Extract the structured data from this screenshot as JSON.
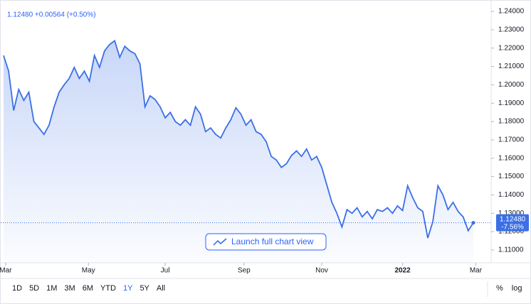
{
  "chart_data": {
    "type": "area",
    "legend_text": "1.12480 +0.00564 (+0.50%)",
    "color": "#3b6fe6",
    "values": [
      1.216,
      1.2075,
      1.186,
      1.1975,
      1.1915,
      1.196,
      1.18,
      1.1765,
      1.173,
      1.178,
      1.188,
      1.196,
      1.2,
      1.2035,
      1.2095,
      1.2035,
      1.2075,
      1.202,
      1.216,
      1.2095,
      1.2185,
      1.222,
      1.224,
      1.215,
      1.221,
      1.2185,
      1.217,
      1.2115,
      1.188,
      1.194,
      1.192,
      1.188,
      1.182,
      1.185,
      1.18,
      1.178,
      1.181,
      1.178,
      1.188,
      1.184,
      1.1745,
      1.1765,
      1.173,
      1.171,
      1.1765,
      1.181,
      1.1875,
      1.184,
      1.178,
      1.181,
      1.1745,
      1.173,
      1.169,
      1.161,
      1.159,
      1.155,
      1.157,
      1.1615,
      1.164,
      1.161,
      1.165,
      1.159,
      1.161,
      1.155,
      1.1455,
      1.136,
      1.13,
      1.1225,
      1.132,
      1.13,
      1.133,
      1.128,
      1.131,
      1.127,
      1.132,
      1.131,
      1.133,
      1.13,
      1.134,
      1.1315,
      1.145,
      1.1385,
      1.133,
      1.131,
      1.1165,
      1.1255,
      1.145,
      1.14,
      1.132,
      1.136,
      1.131,
      1.128,
      1.1205,
      1.1248
    ],
    "xlim": [
      0,
      94
    ],
    "xticks": [
      {
        "value": 0.4,
        "label": "Mar"
      },
      {
        "value": 16.8,
        "label": "May"
      },
      {
        "value": 32,
        "label": "Jul"
      },
      {
        "value": 47.6,
        "label": "Sep"
      },
      {
        "value": 63,
        "label": "Nov"
      },
      {
        "value": 79,
        "label": "2022"
      },
      {
        "value": 93.5,
        "label": "Mar"
      }
    ],
    "ylim": [
      1.103,
      1.2443
    ],
    "yticks": [
      {
        "value": 1.11,
        "label": "1.11000"
      },
      {
        "value": 1.12,
        "label": "1.12000"
      },
      {
        "value": 1.13,
        "label": "1.13000"
      },
      {
        "value": 1.14,
        "label": "1.14000"
      },
      {
        "value": 1.15,
        "label": "1.15000"
      },
      {
        "value": 1.16,
        "label": "1.16000"
      },
      {
        "value": 1.17,
        "label": "1.17000"
      },
      {
        "value": 1.18,
        "label": "1.18000"
      },
      {
        "value": 1.19,
        "label": "1.19000"
      },
      {
        "value": 1.2,
        "label": "1.20000"
      },
      {
        "value": 1.21,
        "label": "1.21000"
      },
      {
        "value": 1.22,
        "label": "1.22000"
      },
      {
        "value": 1.23,
        "label": "1.23000"
      },
      {
        "value": 1.24,
        "label": "1.24000"
      }
    ],
    "last_price": {
      "value": 1.1248,
      "label": "1.12480",
      "change": "-7.56%"
    },
    "launch_button": "Launch full chart view",
    "ranges": [
      "1D",
      "5D",
      "1M",
      "3M",
      "6M",
      "YTD",
      "1Y",
      "5Y",
      "All"
    ],
    "active_range": "1Y",
    "scale_options": [
      "%",
      "log"
    ]
  }
}
